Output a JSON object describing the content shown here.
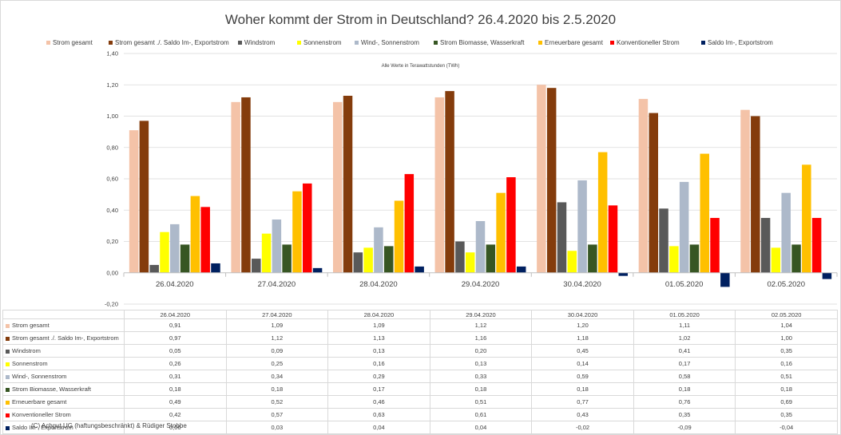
{
  "chart_data": {
    "type": "bar",
    "title": "Woher kommt der Strom in Deutschland? 26.4.2020 bis 2.5.2020",
    "note": "Alle Werte in Terawattstunden (TWh)",
    "categories": [
      "26.04.2020",
      "27.04.2020",
      "28.04.2020",
      "29.04.2020",
      "30.04.2020",
      "01.05.2020",
      "02.05.2020"
    ],
    "ylim": [
      -0.2,
      1.4
    ],
    "yticks": [
      "-0,20",
      "0,00",
      "0,20",
      "0,40",
      "0,60",
      "0,80",
      "1,00",
      "1,20",
      "1,40"
    ],
    "ytick_values": [
      -0.2,
      0,
      0.2,
      0.4,
      0.6,
      0.8,
      1.0,
      1.2,
      1.4
    ],
    "legend_position": "top",
    "grid": true,
    "series": [
      {
        "name": "Strom gesamt",
        "color": "#f4c3a8",
        "values": [
          0.91,
          1.09,
          1.09,
          1.12,
          1.2,
          1.11,
          1.04
        ],
        "labels": [
          "0,91",
          "1,09",
          "1,09",
          "1,12",
          "1,20",
          "1,11",
          "1,04"
        ]
      },
      {
        "name": "Strom gesamt ./. Saldo Im-, Exportstrom",
        "color": "#843c0c",
        "values": [
          0.97,
          1.12,
          1.13,
          1.16,
          1.18,
          1.02,
          1.0
        ],
        "labels": [
          "0,97",
          "1,12",
          "1,13",
          "1,16",
          "1,18",
          "1,02",
          "1,00"
        ]
      },
      {
        "name": "Windstrom",
        "color": "#595959",
        "values": [
          0.05,
          0.09,
          0.13,
          0.2,
          0.45,
          0.41,
          0.35
        ],
        "labels": [
          "0,05",
          "0,09",
          "0,13",
          "0,20",
          "0,45",
          "0,41",
          "0,35"
        ]
      },
      {
        "name": "Sonnenstrom",
        "color": "#ffff00",
        "values": [
          0.26,
          0.25,
          0.16,
          0.13,
          0.14,
          0.17,
          0.16
        ],
        "labels": [
          "0,26",
          "0,25",
          "0,16",
          "0,13",
          "0,14",
          "0,17",
          "0,16"
        ]
      },
      {
        "name": "Wind-, Sonnenstrom",
        "color": "#adb9ca",
        "values": [
          0.31,
          0.34,
          0.29,
          0.33,
          0.59,
          0.58,
          0.51
        ],
        "labels": [
          "0,31",
          "0,34",
          "0,29",
          "0,33",
          "0,59",
          "0,58",
          "0,51"
        ]
      },
      {
        "name": "Strom Biomasse, Wasserkraft",
        "color": "#375623",
        "values": [
          0.18,
          0.18,
          0.17,
          0.18,
          0.18,
          0.18,
          0.18
        ],
        "labels": [
          "0,18",
          "0,18",
          "0,17",
          "0,18",
          "0,18",
          "0,18",
          "0,18"
        ]
      },
      {
        "name": "Erneuerbare gesamt",
        "color": "#ffc000",
        "values": [
          0.49,
          0.52,
          0.46,
          0.51,
          0.77,
          0.76,
          0.69
        ],
        "labels": [
          "0,49",
          "0,52",
          "0,46",
          "0,51",
          "0,77",
          "0,76",
          "0,69"
        ]
      },
      {
        "name": "Konventioneller Strom",
        "color": "#ff0000",
        "values": [
          0.42,
          0.57,
          0.63,
          0.61,
          0.43,
          0.35,
          0.35
        ],
        "labels": [
          "0,42",
          "0,57",
          "0,63",
          "0,61",
          "0,43",
          "0,35",
          "0,35"
        ]
      },
      {
        "name": "Saldo Im-, Exportstrom",
        "color": "#002060",
        "values": [
          0.06,
          0.03,
          0.04,
          0.04,
          -0.02,
          -0.09,
          -0.04
        ],
        "labels": [
          "0,06",
          "0,03",
          "0,04",
          "0,04",
          "-0,02",
          "-0,09",
          "-0,04"
        ]
      }
    ]
  },
  "footer": "(C) Achgut UG (haftungsbeschränkt) & Rüdiger Stobbe"
}
